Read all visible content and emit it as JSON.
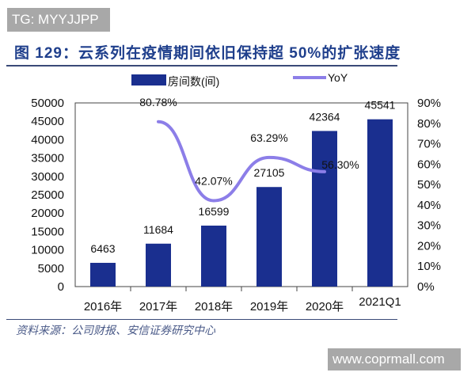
{
  "watermarks": {
    "top_left": "TG: MYYJJPP",
    "bottom_right": "www.coprmall.com"
  },
  "footer": {
    "source": "资料来源：公司财报、安信证券研究中心"
  },
  "chart_data": {
    "type": "bar+line",
    "title": "图 129：云系列在疫情期间依旧保持超 50%的扩张速度",
    "categories": [
      "2016年",
      "2017年",
      "2018年",
      "2019年",
      "2020年",
      "2021Q1"
    ],
    "series": [
      {
        "name": "房间数(间)",
        "type": "bar",
        "axis": "left",
        "color": "#1a2f8f",
        "values": [
          6463,
          11684,
          16599,
          27105,
          42364,
          45541
        ],
        "labels": [
          "6463",
          "11684",
          "16599",
          "27105",
          "42364",
          "45541"
        ]
      },
      {
        "name": "YoY",
        "type": "line",
        "axis": "right",
        "color": "#8c7ee8",
        "values": [
          null,
          80.78,
          42.07,
          63.29,
          56.3,
          null
        ],
        "labels": [
          "",
          "80.78%",
          "42.07%",
          "63.29%",
          "56.30%",
          ""
        ]
      }
    ],
    "left_axis": {
      "ylim": [
        0,
        50000
      ],
      "ticks": [
        "0",
        "5000",
        "10000",
        "15000",
        "20000",
        "25000",
        "30000",
        "35000",
        "40000",
        "45000",
        "50000"
      ]
    },
    "right_axis": {
      "ylim": [
        0,
        90
      ],
      "ticks": [
        "0%",
        "10%",
        "20%",
        "30%",
        "40%",
        "50%",
        "60%",
        "70%",
        "80%",
        "90%"
      ]
    },
    "legend": "top",
    "grid": false
  }
}
